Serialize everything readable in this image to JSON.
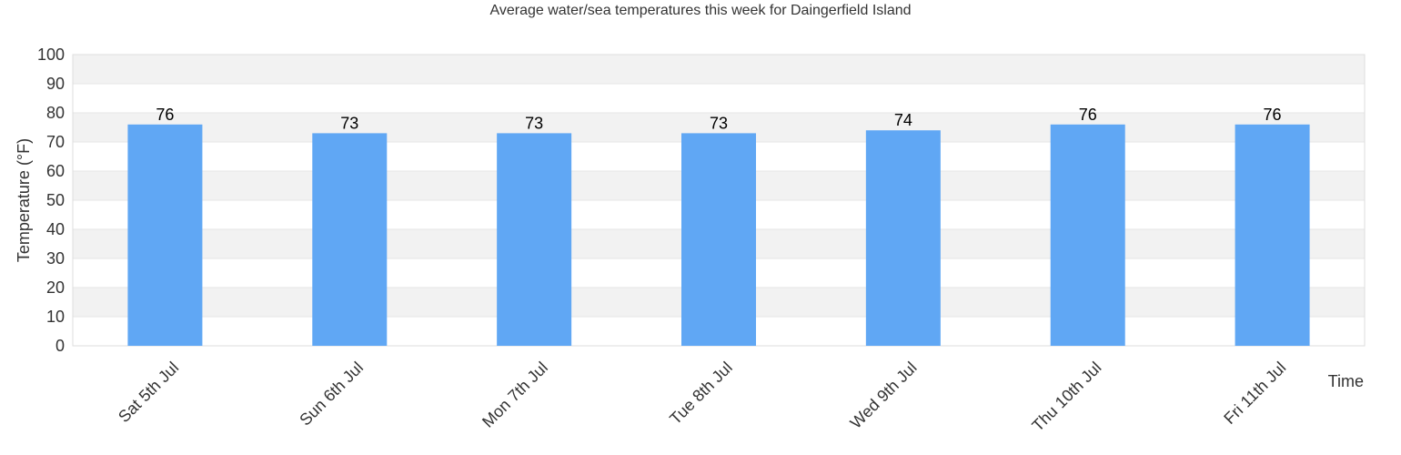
{
  "chart_data": {
    "type": "bar",
    "title": "Average water/sea temperatures this week for Daingerfield Island",
    "xlabel": "Time",
    "ylabel": "Temperature (°F)",
    "categories": [
      "Sat 5th Jul",
      "Sun 6th Jul",
      "Mon 7th Jul",
      "Tue 8th Jul",
      "Wed 9th Jul",
      "Thu 10th Jul",
      "Fri 11th Jul"
    ],
    "values": [
      76,
      73,
      73,
      73,
      74,
      76,
      76
    ],
    "ylim": [
      0,
      100
    ],
    "yticks": [
      0,
      10,
      20,
      30,
      40,
      50,
      60,
      70,
      80,
      90,
      100
    ],
    "grid": true,
    "bar_color": "#60a7f4",
    "band_color": "#f2f2f2",
    "legend": "none"
  }
}
